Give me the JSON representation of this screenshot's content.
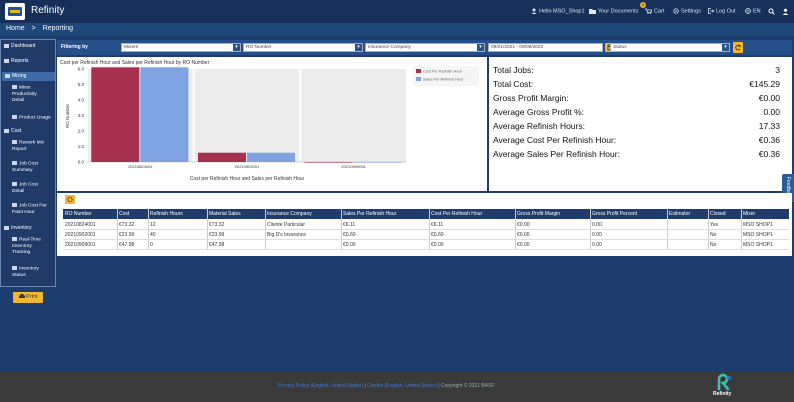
{
  "app": {
    "name": "Refinity"
  },
  "topnav": {
    "hello": "Hello MSO_Shop1",
    "documents": "Your Documents",
    "cart": "Cart",
    "cart_count": "0",
    "settings": "Settings",
    "logout": "Log Out",
    "language": "EN"
  },
  "breadcrumb": {
    "home": "Home",
    "separator": ">",
    "current": "Reporting"
  },
  "sidebar": {
    "dashboard": "Dashboard",
    "reports": "Reports",
    "mixing": "Mixing",
    "mixer_productivity": [
      "Mixer",
      "Productivity",
      "Detail"
    ],
    "product_usage": "Product Usage",
    "cost": "Cost",
    "rework_mix": [
      "Rework Mix",
      "Report"
    ],
    "job_cost_summary": [
      "Job Cost",
      "Summary"
    ],
    "job_cost_detail": [
      "Job Cost",
      "Detail"
    ],
    "job_cost_paint": [
      "Job Cost Per",
      "Paint Hour"
    ],
    "inventory": "Inventory",
    "realtime_inventory": [
      "Real-Time",
      "Inventory",
      "Tracking"
    ],
    "inventory_status": [
      "Inventory",
      "Status"
    ],
    "print": "Print"
  },
  "filters": {
    "label": "Filtering by",
    "mixers": "Mixers",
    "ro_number": "RO Number",
    "insurance": "Insurance Company",
    "date_range": "09/01/2021 - 09/09/2022",
    "status": "Status"
  },
  "stats": [
    {
      "label": "Total Jobs:",
      "value": "3"
    },
    {
      "label": "Total Cost:",
      "value": "€145.29"
    },
    {
      "label": "Gross Profit Margin:",
      "value": "€0.00"
    },
    {
      "label": "Average Gross Profit %:",
      "value": "0.00"
    },
    {
      "label": "Average Refinish Hours:",
      "value": "17.33"
    },
    {
      "label": "Average Cost Per Refinish Hour:",
      "value": "€0.36"
    },
    {
      "label": "Average Sales Per Refinish Hour:",
      "value": "€0.36"
    }
  ],
  "table": {
    "columns": [
      "RO Number",
      "Cost",
      "Refinish Hours",
      "Material Sales",
      "Insurance Company",
      "Sales Per Refinish Hour",
      "Cost Per Refinish Hour",
      "Gross Profit Margin",
      "Gross Profit Percent",
      "Estimator",
      "Closed",
      "Mixer"
    ],
    "rows": [
      [
        "20210824001",
        "€73.32",
        "12",
        "€73.32",
        "Cliente Particular",
        "€6.11",
        "€6.11",
        "€0.00",
        "0.00",
        "",
        "Yes",
        "MSO SHOP1"
      ],
      [
        "20210902001",
        "€23.99",
        "40",
        "€23.99",
        "Big D's Insurance",
        "€0.60",
        "€0.60",
        "€0.00",
        "0.00",
        "",
        "No",
        "MSO SHOP1"
      ],
      [
        "20210909001",
        "€47.98",
        "0",
        "€47.98",
        "",
        "€0.00",
        "€0.00",
        "€0.00",
        "0.00",
        "",
        "No",
        "MSO SHOP1"
      ]
    ]
  },
  "feedback": "Feedback",
  "footer": {
    "privacy": "Privacy Policy (English, United States)",
    "sep": "|",
    "credits": "Credits (English, United States)",
    "copyright": "Copyright © 2021 BASF",
    "brand": "Refinity"
  },
  "colors": {
    "cost_series": "#a8304f",
    "sales_series": "#7fa3e0",
    "accent": "#f0b830"
  },
  "chart_data": {
    "type": "bar",
    "title": "Cost per Refinish Hour and Sales per Refinish Hour by RO Number",
    "xlabel": "Cost per Refinish Hour and Sales per Refinish Hour",
    "ylabel": "RO Number",
    "categories": [
      "20210824001",
      "20210902001",
      "20210909001"
    ],
    "series": [
      {
        "name": "Cost Per Refinish Hour",
        "values": [
          6.11,
          0.6,
          0.0
        ]
      },
      {
        "name": "Sales Per Refinish Hour",
        "values": [
          6.11,
          0.6,
          0.0
        ]
      }
    ],
    "ylim": [
      0,
      6
    ],
    "yticks": [
      "0.0",
      "1.0",
      "2.0",
      "3.0",
      "4.0",
      "5.0",
      "6.0"
    ],
    "legend": "top-right",
    "grid": false
  }
}
